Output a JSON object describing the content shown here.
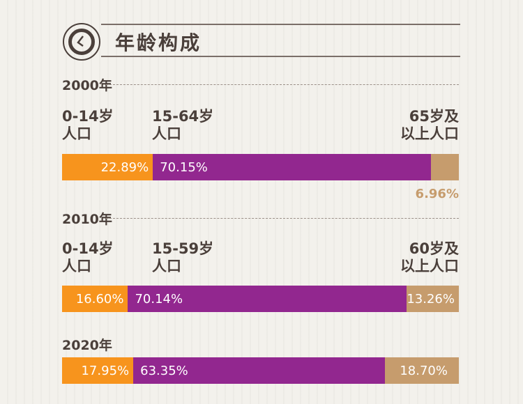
{
  "title": "年龄构成",
  "colors": {
    "young": "#f7941d",
    "working": "#92278f",
    "old": "#c69c6d"
  },
  "chart_data": {
    "type": "bar",
    "stacked": true,
    "orientation": "horizontal",
    "title": "年龄构成",
    "groups": [
      {
        "year": "2000年",
        "labels": [
          "0-14岁\n人口",
          "15-64岁\n人口",
          "65岁及\n以上人口"
        ],
        "values": [
          22.89,
          70.15,
          6.96
        ],
        "value_labels": [
          "22.89%",
          "70.15%",
          "6.96%"
        ]
      },
      {
        "year": "2010年",
        "labels": [
          "0-14岁\n人口",
          "15-59岁\n人口",
          "60岁及\n以上人口"
        ],
        "values": [
          16.6,
          70.14,
          13.26
        ],
        "value_labels": [
          "16.60%",
          "70.14%",
          "13.26%"
        ]
      },
      {
        "year": "2020年",
        "labels": [],
        "values": [
          17.95,
          63.35,
          18.7
        ],
        "value_labels": [
          "17.95%",
          "63.35%",
          "18.70%"
        ]
      }
    ]
  }
}
